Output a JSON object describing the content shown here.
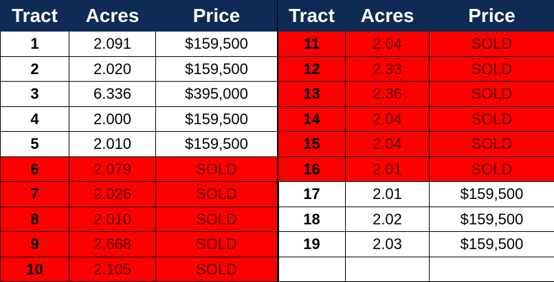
{
  "columns": {
    "tract": "Tract",
    "acres": "Acres",
    "price": "Price"
  },
  "colors": {
    "header_bg": "#0f2a54",
    "sold_bg": "#ff0000",
    "available_bg": "#ffffff"
  },
  "left_rows": [
    {
      "tract": "1",
      "acres": "2.091",
      "price": "$159,500",
      "sold": false
    },
    {
      "tract": "2",
      "acres": "2.020",
      "price": "$159,500",
      "sold": false
    },
    {
      "tract": "3",
      "acres": "6.336",
      "price": "$395,000",
      "sold": false
    },
    {
      "tract": "4",
      "acres": "2.000",
      "price": "$159,500",
      "sold": false
    },
    {
      "tract": "5",
      "acres": "2.010",
      "price": "$159,500",
      "sold": false
    },
    {
      "tract": "6",
      "acres": "2.079",
      "price": "SOLD",
      "sold": true
    },
    {
      "tract": "7",
      "acres": "2.026",
      "price": "SOLD",
      "sold": true
    },
    {
      "tract": "8",
      "acres": "2.010",
      "price": "SOLD",
      "sold": true
    },
    {
      "tract": "9",
      "acres": "2.668",
      "price": "SOLD",
      "sold": true
    },
    {
      "tract": "10",
      "acres": "2.105",
      "price": "SOLD",
      "sold": true
    }
  ],
  "right_rows": [
    {
      "tract": "11",
      "acres": "2.04",
      "price": "SOLD",
      "sold": true
    },
    {
      "tract": "12",
      "acres": "2.33",
      "price": "SOLD",
      "sold": true
    },
    {
      "tract": "13",
      "acres": "2.36",
      "price": "SOLD",
      "sold": true
    },
    {
      "tract": "14",
      "acres": "2.04",
      "price": "SOLD",
      "sold": true
    },
    {
      "tract": "15",
      "acres": "2.04",
      "price": "SOLD",
      "sold": true
    },
    {
      "tract": "16",
      "acres": "2.01",
      "price": "SOLD",
      "sold": true
    },
    {
      "tract": "17",
      "acres": "2.01",
      "price": "$159,500",
      "sold": false
    },
    {
      "tract": "18",
      "acres": "2.02",
      "price": "$159,500",
      "sold": false
    },
    {
      "tract": "19",
      "acres": "2.03",
      "price": "$159,500",
      "sold": false
    },
    {
      "tract": "",
      "acres": "",
      "price": "",
      "sold": false
    }
  ]
}
